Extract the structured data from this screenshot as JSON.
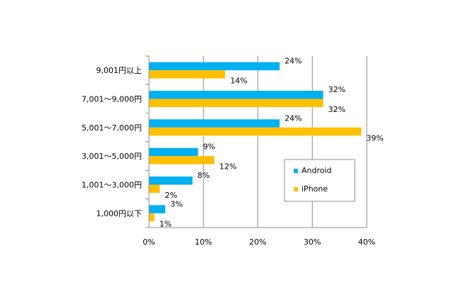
{
  "chart_data": {
    "type": "bar",
    "orientation": "horizontal",
    "categories": [
      "9,001円以上",
      "7,001～9,000円",
      "5,001～7,000円",
      "3,001～5,000円",
      "1,001～3,000円",
      "1,000円以下"
    ],
    "series": [
      {
        "name": "Android",
        "color": "#00b0f0",
        "values": [
          24,
          32,
          24,
          9,
          8,
          3
        ],
        "labels": [
          "24%",
          "32%",
          "24%",
          "9%",
          "8%",
          "3%"
        ]
      },
      {
        "name": "iPhone",
        "color": "#ffc000",
        "values": [
          14,
          32,
          39,
          12,
          2,
          1
        ],
        "labels": [
          "14%",
          "32%",
          "39%",
          "12%",
          "2%",
          "1%"
        ]
      }
    ],
    "xlim": [
      0,
      40
    ],
    "xticks": [
      "0%",
      "10%",
      "20%",
      "30%",
      "40%"
    ],
    "grid": true,
    "legend_position": "right-middle"
  }
}
